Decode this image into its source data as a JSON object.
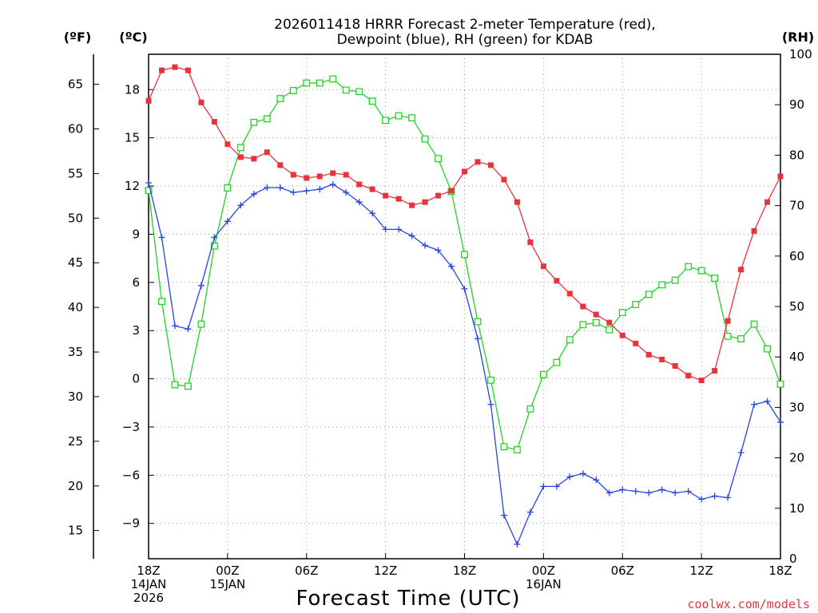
{
  "chart_data": {
    "type": "line",
    "title_line1": "2026011418 HRRR Forecast 2-meter Temperature (red),",
    "title_line2": "Dewpoint (blue), RH (green) for KDAB",
    "xlabel": "Forecast Time (UTC)",
    "credit": "coolwx.com/models",
    "unit_f": "(ºF)",
    "unit_c": "(ºC)",
    "unit_rh": "(RH)",
    "x_range": [
      0,
      48
    ],
    "c_range": [
      -11.2,
      20.2
    ],
    "rh_range": [
      0,
      100
    ],
    "f_ticks": [
      "15",
      "20",
      "25",
      "30",
      "35",
      "40",
      "45",
      "50",
      "55",
      "60",
      "65"
    ],
    "c_ticks": [
      "−9",
      "−6",
      "−3",
      "0",
      "3",
      "6",
      "9",
      "12",
      "15",
      "18"
    ],
    "rh_ticks": [
      "0",
      "10",
      "20",
      "30",
      "40",
      "50",
      "60",
      "70",
      "80",
      "90",
      "100"
    ],
    "x_ticks": [
      {
        "x": 0,
        "lines": [
          "18Z",
          "14JAN",
          "2026"
        ]
      },
      {
        "x": 6,
        "lines": [
          "00Z",
          "15JAN"
        ]
      },
      {
        "x": 12,
        "lines": [
          "06Z"
        ]
      },
      {
        "x": 18,
        "lines": [
          "12Z"
        ]
      },
      {
        "x": 24,
        "lines": [
          "18Z"
        ]
      },
      {
        "x": 30,
        "lines": [
          "00Z",
          "16JAN"
        ]
      },
      {
        "x": 36,
        "lines": [
          "06Z"
        ]
      },
      {
        "x": 42,
        "lines": [
          "12Z"
        ]
      },
      {
        "x": 48,
        "lines": [
          "18Z"
        ]
      }
    ],
    "series": [
      {
        "name": "Temperature",
        "axis": "C",
        "color": "#e8333b",
        "marker": "filled-square",
        "values": [
          17.3,
          19.2,
          19.4,
          19.2,
          17.2,
          16.0,
          14.6,
          13.8,
          13.7,
          14.1,
          13.3,
          12.7,
          12.5,
          12.6,
          12.8,
          12.7,
          12.1,
          11.8,
          11.4,
          11.2,
          10.8,
          11.0,
          11.4,
          11.7,
          12.9,
          13.5,
          13.3,
          12.4,
          11.0,
          8.5,
          7.0,
          6.1,
          5.3,
          4.5,
          4.0,
          3.5,
          2.7,
          2.2,
          1.5,
          1.2,
          0.8,
          0.2,
          -0.1,
          0.5,
          3.6,
          6.8,
          9.2,
          11.0,
          12.6
        ]
      },
      {
        "name": "Dewpoint",
        "axis": "C",
        "color": "#2345e2",
        "marker": "plus",
        "values": [
          12.2,
          8.8,
          3.3,
          3.1,
          5.8,
          8.8,
          9.8,
          10.8,
          11.5,
          11.9,
          11.9,
          11.6,
          11.7,
          11.8,
          12.1,
          11.6,
          11.0,
          10.3,
          9.3,
          9.3,
          8.9,
          8.3,
          8.0,
          7.0,
          5.6,
          2.5,
          -1.6,
          -8.5,
          -10.3,
          -8.3,
          -6.7,
          -6.7,
          -6.1,
          -5.9,
          -6.3,
          -7.1,
          -6.9,
          -7.0,
          -7.1,
          -6.9,
          -7.1,
          -7.0,
          -7.5,
          -7.3,
          -7.4,
          -4.6,
          -1.6,
          -1.4,
          -2.7
        ]
      },
      {
        "name": "RH",
        "axis": "RH",
        "color": "#22d327",
        "marker": "open-square",
        "values": [
          73,
          51,
          34.5,
          34.2,
          46.5,
          62,
          73.5,
          81.5,
          86.5,
          87.2,
          91.2,
          92.8,
          94.3,
          94.3,
          95.1,
          92.9,
          92.6,
          90.7,
          86.9,
          87.8,
          87.4,
          83.2,
          79.3,
          72.8,
          60.3,
          47,
          35.4,
          22.2,
          21.6,
          29.7,
          36.5,
          38.9,
          43.4,
          46.4,
          46.8,
          45.4,
          48.8,
          50.4,
          52.4,
          54.3,
          55.2,
          57.9,
          57.1,
          55.6,
          44.1,
          43.6,
          46.5,
          41.6,
          34.6
        ]
      }
    ]
  }
}
